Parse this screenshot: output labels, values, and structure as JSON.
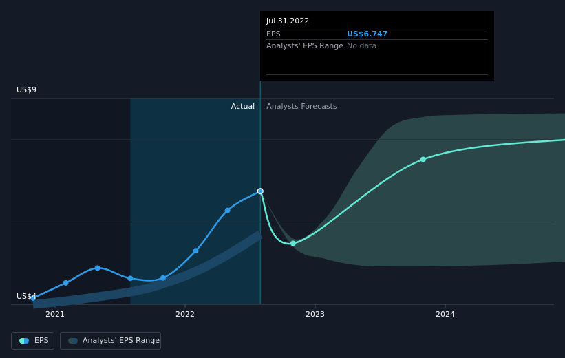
{
  "tooltip": {
    "date": "Jul 31 2022",
    "eps_label": "EPS",
    "eps_value": "US$6.747",
    "range_label": "Analysts' EPS Range",
    "range_value": "No data"
  },
  "legend": {
    "eps_label": "EPS",
    "range_label": "Analysts' EPS Range"
  },
  "colors": {
    "background": "#151b26",
    "eps_actual": "#2f9be8",
    "eps_forecast": "#62e8d4",
    "range_band": "#2e4d4f",
    "highlight": "#0b3a4d"
  },
  "chart_data": {
    "type": "line",
    "title": "",
    "xlabel": "",
    "ylabel": "",
    "ylim": [
      4,
      9
    ],
    "y_tick_labels": [
      "US$9",
      "US$4"
    ],
    "x_tick_labels": [
      "2021",
      "2022",
      "2023",
      "2024"
    ],
    "section_labels": {
      "actual": "Actual",
      "forecast": "Analysts Forecasts"
    },
    "series": [
      {
        "key": "eps_actual",
        "points": [
          [
            "2020-10-31",
            4.15
          ],
          [
            "2021-01-31",
            4.52
          ],
          [
            "2021-04-30",
            4.88
          ],
          [
            "2021-07-31",
            4.63
          ],
          [
            "2021-10-31",
            4.64
          ],
          [
            "2022-01-31",
            5.3
          ],
          [
            "2022-04-30",
            6.28
          ],
          [
            "2022-07-31",
            6.747
          ]
        ]
      },
      {
        "key": "eps_forecast",
        "points": [
          [
            "2022-07-31",
            6.747
          ],
          [
            "2022-10-31",
            5.48
          ],
          [
            "2023-10-31",
            7.52
          ],
          [
            "2024-12-31",
            8.02
          ]
        ]
      },
      {
        "key": "past_trend_band",
        "points": [
          [
            "2020-10-31",
            4.0
          ],
          [
            "2021-01-31",
            4.08
          ],
          [
            "2021-07-31",
            4.3
          ],
          [
            "2021-10-31",
            4.5
          ],
          [
            "2022-01-31",
            4.8
          ],
          [
            "2022-04-30",
            5.2
          ],
          [
            "2022-07-31",
            5.7
          ]
        ]
      }
    ],
    "forecast_range": {
      "x": [
        "2022-07-31",
        "2022-10-31",
        "2023-01-31",
        "2023-04-30",
        "2023-07-31",
        "2023-10-31",
        "2024-01-31",
        "2024-04-30",
        "2024-07-31",
        "2024-12-31"
      ],
      "high": [
        6.747,
        5.6,
        6.1,
        7.3,
        8.3,
        8.55,
        8.6,
        8.62,
        8.63,
        8.64
      ],
      "low": [
        6.747,
        5.4,
        5.1,
        4.95,
        4.92,
        4.92,
        4.93,
        4.95,
        4.98,
        5.05
      ]
    },
    "grid": true,
    "legend": "bottom-left"
  }
}
